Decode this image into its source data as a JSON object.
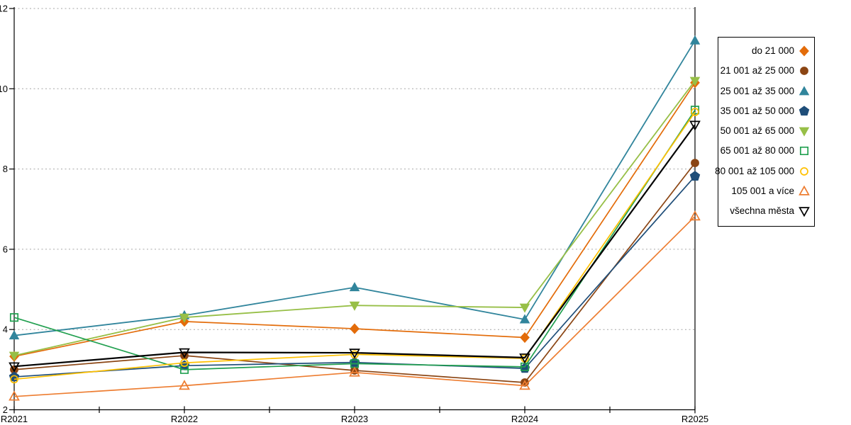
{
  "chart_data": {
    "type": "line",
    "title": "",
    "xlabel": "",
    "ylabel": "",
    "categories": [
      "R2021",
      "R2022",
      "R2023",
      "R2024",
      "R2025"
    ],
    "ylim": [
      2,
      12
    ],
    "yticks": [
      2,
      4,
      6,
      8,
      10,
      12
    ],
    "grid": "horizontal-dotted",
    "legend_position": "right",
    "gridline_color": "#A6A6A6",
    "axis_color": "#000000",
    "series": [
      {
        "name": "do 21 000",
        "color": "#E36C0A",
        "marker": "diamond",
        "fill": true,
        "line_width": 1.7,
        "values": [
          3.33,
          4.2,
          4.02,
          3.8,
          10.15
        ]
      },
      {
        "name": "21 001 až 25 000",
        "color": "#8B4513",
        "marker": "circle",
        "fill": true,
        "line_width": 1.7,
        "values": [
          3.0,
          3.35,
          2.98,
          2.68,
          8.15
        ]
      },
      {
        "name": "25 001 až 35 000",
        "color": "#31859C",
        "marker": "triangle-up",
        "fill": true,
        "line_width": 1.8,
        "values": [
          3.85,
          4.35,
          5.05,
          4.25,
          11.2
        ]
      },
      {
        "name": "35 001 až 50 000",
        "color": "#1F4E79",
        "marker": "pentagon",
        "fill": true,
        "line_width": 1.7,
        "values": [
          2.82,
          3.1,
          3.18,
          3.03,
          7.82
        ]
      },
      {
        "name": "50 001 až 65 000",
        "color": "#97BF47",
        "marker": "triangle-down",
        "fill": true,
        "line_width": 1.8,
        "values": [
          3.35,
          4.3,
          4.6,
          4.55,
          10.2
        ]
      },
      {
        "name": "65 001 až 80 000",
        "color": "#22A050",
        "marker": "square",
        "fill": false,
        "line_width": 1.7,
        "values": [
          4.3,
          3.0,
          3.15,
          3.07,
          9.47
        ]
      },
      {
        "name": "80 001 až 105 000",
        "color": "#FFC000",
        "marker": "circle",
        "fill": false,
        "line_width": 1.7,
        "values": [
          2.76,
          3.17,
          3.38,
          3.28,
          9.42
        ]
      },
      {
        "name": "105 001 a více",
        "color": "#ED7D31",
        "marker": "triangle-up",
        "fill": false,
        "line_width": 1.7,
        "values": [
          2.33,
          2.6,
          2.93,
          2.6,
          6.82
        ]
      },
      {
        "name": "všechna města",
        "color": "#000000",
        "marker": "triangle-down",
        "fill": false,
        "line_width": 2.2,
        "values": [
          3.08,
          3.43,
          3.42,
          3.3,
          9.1
        ]
      }
    ]
  }
}
